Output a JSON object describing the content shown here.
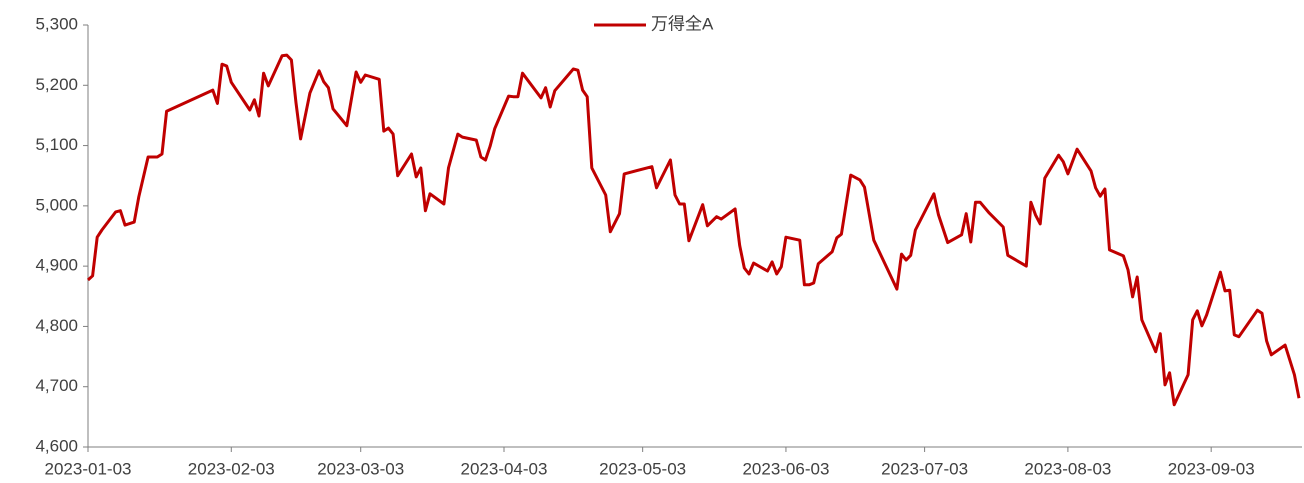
{
  "chart_data": {
    "type": "line",
    "x": [
      "2023-01-03",
      "2023-01-04",
      "2023-01-05",
      "2023-01-06",
      "2023-01-09",
      "2023-01-10",
      "2023-01-11",
      "2023-01-13",
      "2023-01-14",
      "2023-01-16",
      "2023-01-18",
      "2023-01-19",
      "2023-01-20",
      "2023-01-30",
      "2023-01-31",
      "2023-02-01",
      "2023-02-02",
      "2023-02-03",
      "2023-02-07",
      "2023-02-08",
      "2023-02-09",
      "2023-02-10",
      "2023-02-11",
      "2023-02-14",
      "2023-02-15",
      "2023-02-16",
      "2023-02-17",
      "2023-02-18",
      "2023-02-20",
      "2023-02-22",
      "2023-02-23",
      "2023-02-24",
      "2023-02-25",
      "2023-02-28",
      "2023-03-02",
      "2023-03-03",
      "2023-03-04",
      "2023-03-07",
      "2023-03-08",
      "2023-03-09",
      "2023-03-10",
      "2023-03-11",
      "2023-03-14",
      "2023-03-15",
      "2023-03-16",
      "2023-03-17",
      "2023-03-18",
      "2023-03-21",
      "2023-03-22",
      "2023-03-24",
      "2023-03-25",
      "2023-03-28",
      "2023-03-29",
      "2023-03-30",
      "2023-03-31",
      "2023-04-01",
      "2023-04-04",
      "2023-04-05",
      "2023-04-06",
      "2023-04-07",
      "2023-04-11",
      "2023-04-12",
      "2023-04-13",
      "2023-04-14",
      "2023-04-18",
      "2023-04-19",
      "2023-04-20",
      "2023-04-21",
      "2023-04-22",
      "2023-04-25",
      "2023-04-26",
      "2023-04-28",
      "2023-04-29",
      "2023-05-05",
      "2023-05-06",
      "2023-05-09",
      "2023-05-10",
      "2023-05-11",
      "2023-05-12",
      "2023-05-13",
      "2023-05-16",
      "2023-05-17",
      "2023-05-19",
      "2023-05-20",
      "2023-05-23",
      "2023-05-24",
      "2023-05-25",
      "2023-05-26",
      "2023-05-27",
      "2023-05-30",
      "2023-05-31",
      "2023-06-01",
      "2023-06-02",
      "2023-06-03",
      "2023-06-06",
      "2023-06-07",
      "2023-06-08",
      "2023-06-09",
      "2023-06-10",
      "2023-06-13",
      "2023-06-14",
      "2023-06-15",
      "2023-06-17",
      "2023-06-19",
      "2023-06-20",
      "2023-06-22",
      "2023-06-27",
      "2023-06-28",
      "2023-06-29",
      "2023-06-30",
      "2023-07-01",
      "2023-07-05",
      "2023-07-06",
      "2023-07-08",
      "2023-07-11",
      "2023-07-12",
      "2023-07-13",
      "2023-07-14",
      "2023-07-15",
      "2023-07-17",
      "2023-07-20",
      "2023-07-21",
      "2023-07-25",
      "2023-07-26",
      "2023-07-27",
      "2023-07-28",
      "2023-07-29",
      "2023-08-01",
      "2023-08-02",
      "2023-08-03",
      "2023-08-05",
      "2023-08-08",
      "2023-08-09",
      "2023-08-10",
      "2023-08-11",
      "2023-08-12",
      "2023-08-15",
      "2023-08-16",
      "2023-08-17",
      "2023-08-18",
      "2023-08-19",
      "2023-08-22",
      "2023-08-23",
      "2023-08-24",
      "2023-08-25",
      "2023-08-26",
      "2023-08-29",
      "2023-08-30",
      "2023-08-31",
      "2023-09-01",
      "2023-09-02",
      "2023-09-05",
      "2023-09-06",
      "2023-09-07",
      "2023-09-08",
      "2023-09-09",
      "2023-09-13",
      "2023-09-14",
      "2023-09-15",
      "2023-09-16",
      "2023-09-19",
      "2023-09-21",
      "2023-09-22"
    ],
    "series": [
      {
        "name": "万得全A",
        "color": "#c00000",
        "values": [
          4877,
          4884,
          4948,
          4960,
          4990,
          4992,
          4968,
          4973,
          5015,
          5081,
          5081,
          5086,
          5157,
          5192,
          5170,
          5235,
          5232,
          5205,
          5159,
          5176,
          5149,
          5220,
          5199,
          5249,
          5250,
          5242,
          5171,
          5111,
          5187,
          5224,
          5206,
          5196,
          5161,
          5133,
          5222,
          5205,
          5217,
          5210,
          5124,
          5129,
          5119,
          5050,
          5086,
          5048,
          5063,
          4992,
          5020,
          5003,
          5063,
          5119,
          5114,
          5109,
          5081,
          5076,
          5099,
          5128,
          5182,
          5181,
          5181,
          5220,
          5179,
          5196,
          5164,
          5191,
          5227,
          5225,
          5192,
          5181,
          5063,
          5018,
          4957,
          4987,
          5053,
          5065,
          5030,
          5076,
          5018,
          5003,
          5003,
          4942,
          5002,
          4967,
          4982,
          4978,
          4995,
          4934,
          4897,
          4887,
          4905,
          4892,
          4907,
          4887,
          4899,
          4948,
          4943,
          4869,
          4869,
          4872,
          4904,
          4924,
          4947,
          4953,
          5051,
          5043,
          5031,
          4943,
          4862,
          4920,
          4910,
          4918,
          4960,
          5020,
          4985,
          4939,
          4952,
          4987,
          4940,
          5006,
          5006,
          4988,
          4965,
          4918,
          4900,
          5006,
          4985,
          4970,
          5046,
          5084,
          5073,
          5053,
          5094,
          5058,
          5030,
          5016,
          5028,
          4927,
          4917,
          4894,
          4849,
          4882,
          4811,
          4758,
          4788,
          4703,
          4723,
          4670,
          4720,
          4811,
          4826,
          4801,
          4819,
          4890,
          4859,
          4860,
          4786,
          4783,
          4827,
          4822,
          4776,
          4753,
          4769,
          4720,
          4681
        ]
      }
    ],
    "xlim": [
      "2023-01-03",
      "2023-09-22"
    ],
    "xticks": [
      "2023-01-03",
      "2023-02-03",
      "2023-03-03",
      "2023-04-03",
      "2023-05-03",
      "2023-06-03",
      "2023-07-03",
      "2023-08-03",
      "2023-09-03"
    ],
    "ylim": [
      4600,
      5300
    ],
    "yticks": [
      {
        "value": 4600,
        "label": "4,600"
      },
      {
        "value": 4700,
        "label": "4,700"
      },
      {
        "value": 4800,
        "label": "4,800"
      },
      {
        "value": 4900,
        "label": "4,900"
      },
      {
        "value": 5000,
        "label": "5,000"
      },
      {
        "value": 5100,
        "label": "5,100"
      },
      {
        "value": 5200,
        "label": "5,200"
      },
      {
        "value": 5300,
        "label": "5,300"
      }
    ],
    "legend": "top"
  }
}
